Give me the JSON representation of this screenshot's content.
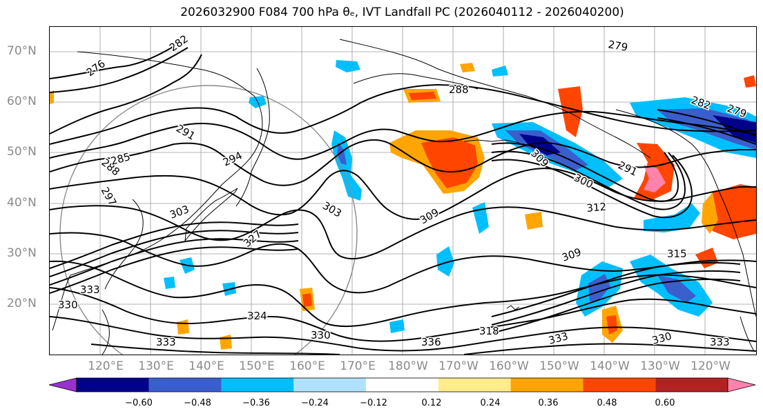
{
  "title": "2026032900 F084 700 hPa θₑ, IVT Landfall PC (2026040112 - 2026040200)",
  "lat_labels": [
    "70°N",
    "60°N",
    "50°N",
    "40°N",
    "30°N",
    "20°N"
  ],
  "lon_labels": [
    "120°E",
    "130°E",
    "140°E",
    "150°E",
    "160°E",
    "170°E",
    "180°W",
    "170°W",
    "160°W",
    "150°W",
    "140°W",
    "130°W",
    "120°W"
  ],
  "contour_labels": [
    "276",
    "282",
    "279",
    "288",
    "285",
    "282",
    "279",
    "288",
    "294",
    "297",
    "291",
    "303",
    "309",
    "300",
    "291",
    "303",
    "309",
    "312",
    "327",
    "309",
    "315",
    "333",
    "330",
    "324",
    "330",
    "336",
    "318",
    "333",
    "330",
    "333",
    "333"
  ],
  "colorbar": {
    "ticks": [
      "−0.60",
      "−0.48",
      "−0.36",
      "−0.24",
      "−0.12",
      "0.12",
      "0.24",
      "0.36",
      "0.48",
      "0.60"
    ],
    "colors": {
      "under": "#9932cc",
      "bins": [
        "#9932cc",
        "#00008b",
        "#3a5fcd",
        "#00bfff",
        "#b0e2ff",
        "#ffffff",
        "#ffec8b",
        "#ffa500",
        "#ff4500",
        "#b22222",
        "#ff82ab"
      ],
      "over": "#ff82ab"
    }
  },
  "legend_icons": {
    "coastline": "coastline-icon",
    "circle": "radius-circle-icon"
  }
}
